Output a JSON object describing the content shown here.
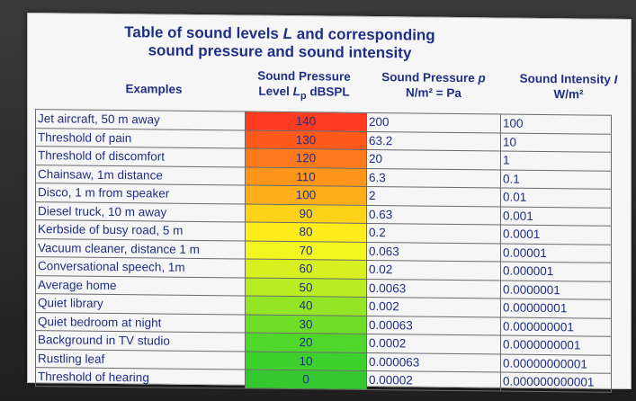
{
  "title": {
    "line1_pre": "Table of sound levels ",
    "line1_var": "L",
    "line1_post": " and corresponding",
    "line2": "sound pressure and sound intensity"
  },
  "headers": {
    "examples": "Examples",
    "level_line1": "Sound Pressure",
    "level_line2_pre": "Level ",
    "level_line2_var": "L",
    "level_line2_sub": "p",
    "level_line2_post": " dBSPL",
    "pressure_line1_pre": "Sound Pressure ",
    "pressure_line1_var": "p",
    "pressure_line2": "N/m² = Pa",
    "intensity_line1_pre": "Sound Intensity ",
    "intensity_line1_var": "I",
    "intensity_line2": "W/m²"
  },
  "rows": [
    {
      "example": "Jet aircraft, 50 m away",
      "level": "140",
      "pressure": "200",
      "intensity": "100",
      "color": "#ff3b22"
    },
    {
      "example": "Threshold of pain",
      "level": "130",
      "pressure": "63.2",
      "intensity": "10",
      "color": "#ff5a1c"
    },
    {
      "example": "Threshold of discomfort",
      "level": "120",
      "pressure": "20",
      "intensity": "1",
      "color": "#ff7a1c"
    },
    {
      "example": "Chainsaw, 1m distance",
      "level": "110",
      "pressure": "6.3",
      "intensity": "0.1",
      "color": "#ff951a"
    },
    {
      "example": "Disco, 1 m from speaker",
      "level": "100",
      "pressure": "2",
      "intensity": "0.01",
      "color": "#ffad1a"
    },
    {
      "example": "Diesel truck, 10 m away",
      "level": "90",
      "pressure": "0.63",
      "intensity": "0.001",
      "color": "#ffd21a"
    },
    {
      "example": "Kerbside of busy road, 5 m",
      "level": "80",
      "pressure": "0.2",
      "intensity": "0.0001",
      "color": "#ffec1a"
    },
    {
      "example": "Vacuum cleaner, distance 1 m",
      "level": "70",
      "pressure": "0.063",
      "intensity": "0.00001",
      "color": "#f2f51f"
    },
    {
      "example": "Conversational speech, 1m",
      "level": "60",
      "pressure": "0.02",
      "intensity": "0.000001",
      "color": "#d7f01f"
    },
    {
      "example": "Average home",
      "level": "50",
      "pressure": "0.0063",
      "intensity": "0.0000001",
      "color": "#b9ec22"
    },
    {
      "example": "Quiet library",
      "level": "40",
      "pressure": "0.002",
      "intensity": "0.00000001",
      "color": "#94e525"
    },
    {
      "example": "Quiet bedroom at night",
      "level": "30",
      "pressure": "0.00063",
      "intensity": "0.000000001",
      "color": "#6fde28"
    },
    {
      "example": "Background in TV studio",
      "level": "20",
      "pressure": "0.0002",
      "intensity": "0.0000000001",
      "color": "#4fd72b"
    },
    {
      "example": "Rustling leaf",
      "level": "10",
      "pressure": "0.000063",
      "intensity": "0.00000000001",
      "color": "#3dd12e"
    },
    {
      "example": "Threshold of hearing",
      "level": "0",
      "pressure": "0.00002",
      "intensity": "0.000000000001",
      "color": "#34c72f"
    }
  ]
}
